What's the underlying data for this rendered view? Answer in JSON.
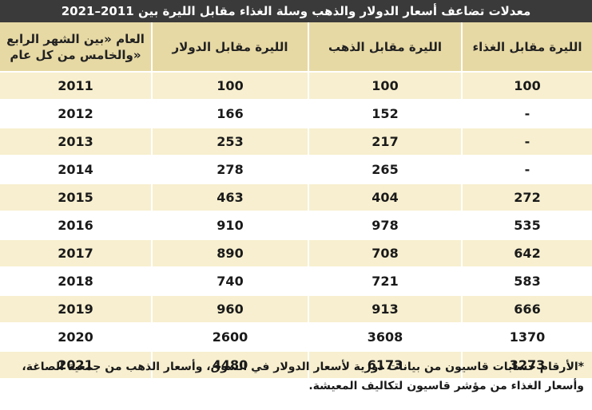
{
  "title": "معدلات تضاعف أسعار الدولار والذهب وسلة الغذاء مقابل الليرة بين 2011–2021",
  "columns": {
    "food": "الليرة مقابل الغذاء",
    "gold": "الليرة مقابل الذهب",
    "dollar": "الليرة مقابل الدولار",
    "year": "العام «بين الشهر الرابع والخامس من كل عام»"
  },
  "rows": [
    {
      "year": "2011",
      "dollar": "100",
      "gold": "100",
      "food": "100"
    },
    {
      "year": "2012",
      "dollar": "166",
      "gold": "152",
      "food": "-"
    },
    {
      "year": "2013",
      "dollar": "253",
      "gold": "217",
      "food": "-"
    },
    {
      "year": "2014",
      "dollar": "278",
      "gold": "265",
      "food": "-"
    },
    {
      "year": "2015",
      "dollar": "463",
      "gold": "404",
      "food": "272"
    },
    {
      "year": "2016",
      "dollar": "910",
      "gold": "978",
      "food": "535"
    },
    {
      "year": "2017",
      "dollar": "890",
      "gold": "708",
      "food": "642"
    },
    {
      "year": "2018",
      "dollar": "740",
      "gold": "721",
      "food": "583"
    },
    {
      "year": "2019",
      "dollar": "960",
      "gold": "913",
      "food": "666"
    },
    {
      "year": "2020",
      "dollar": "2600",
      "gold": "3608",
      "food": "1370"
    },
    {
      "year": "2021",
      "dollar": "4480",
      "gold": "6173",
      "food": "3273"
    }
  ],
  "footnote": "*الأرقام حسابات قاسيون من بيانات دورية لأسعار الدولار في السوق، وأسعار الذهب من جمعية الصاغة، وأسعار الغذاء من مؤشر قاسيون لتكاليف المعيشة."
}
